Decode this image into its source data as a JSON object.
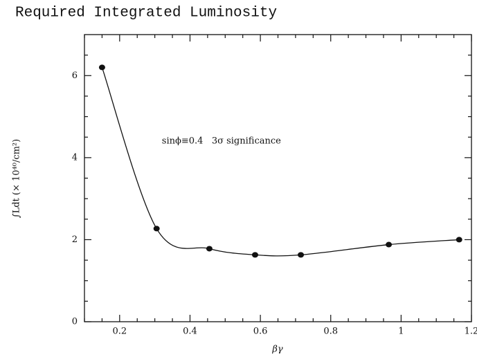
{
  "chart_data": {
    "type": "scatter",
    "title": "Required Integrated Luminosity",
    "x_label": "βγ",
    "y_label": "∫Ldt (× 10⁴⁰/cm²)",
    "annotation": "sinϕ≡0.4   3σ significance",
    "series": [
      {
        "name": null,
        "color": "#111111",
        "x": [
          0.15,
          0.305,
          0.455,
          0.585,
          0.715,
          0.965,
          1.165
        ],
        "values": [
          6.2,
          2.27,
          1.78,
          1.63,
          1.63,
          1.88,
          2.0
        ]
      }
    ],
    "smooth_curve": true,
    "xlim": [
      0.1,
      1.2
    ],
    "ylim": [
      0,
      7
    ],
    "xticks": [
      0.2,
      0.4,
      0.6,
      0.8,
      1,
      1.2
    ],
    "yticks": [
      0,
      2,
      4,
      6
    ],
    "xminorticks": [
      0.1,
      0.15,
      0.25,
      0.3,
      0.35,
      0.45,
      0.5,
      0.55,
      0.65,
      0.7,
      0.75,
      0.85,
      0.9,
      0.95,
      1.05,
      1.1,
      1.15
    ],
    "yminorticks": [
      0.5,
      1,
      1.5,
      2.5,
      3,
      3.5,
      4.5,
      5,
      5.5,
      6.5
    ]
  }
}
